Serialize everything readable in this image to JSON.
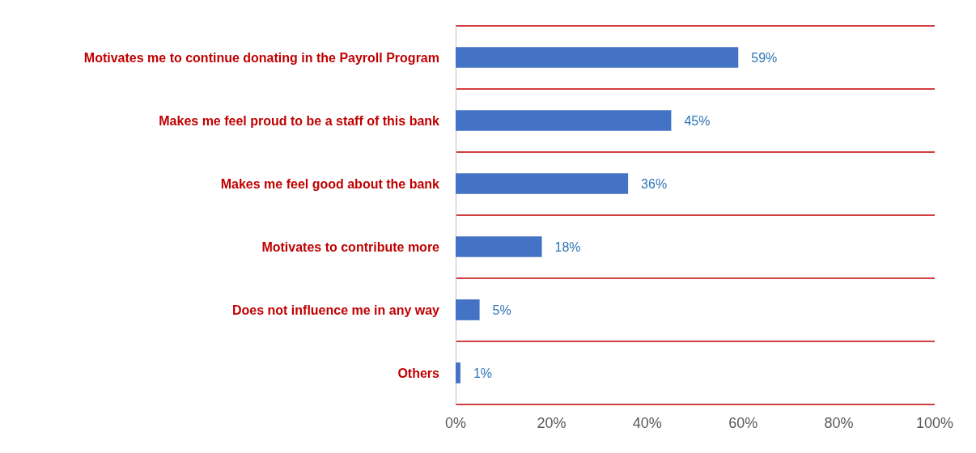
{
  "chart_data": {
    "type": "bar",
    "orientation": "horizontal",
    "categories": [
      "Motivates me to continue donating in the Payroll Program",
      "Makes me feel proud to be a staff of this bank",
      "Makes me feel good about the bank",
      "Motivates to contribute more",
      "Does not influence me in any way",
      "Others"
    ],
    "values": [
      59,
      45,
      36,
      18,
      5,
      1
    ],
    "value_labels": [
      "59%",
      "45%",
      "36%",
      "18%",
      "5%",
      "1%"
    ],
    "color": "#4472c4",
    "xlim": [
      0,
      100
    ],
    "xticks": [
      {
        "value": 0,
        "label": "0%"
      },
      {
        "value": 20,
        "label": "20%"
      },
      {
        "value": 40,
        "label": "40%"
      },
      {
        "value": 60,
        "label": "60%"
      },
      {
        "value": 80,
        "label": "80%"
      },
      {
        "value": 100,
        "label": "100%"
      }
    ],
    "grid": "y"
  }
}
